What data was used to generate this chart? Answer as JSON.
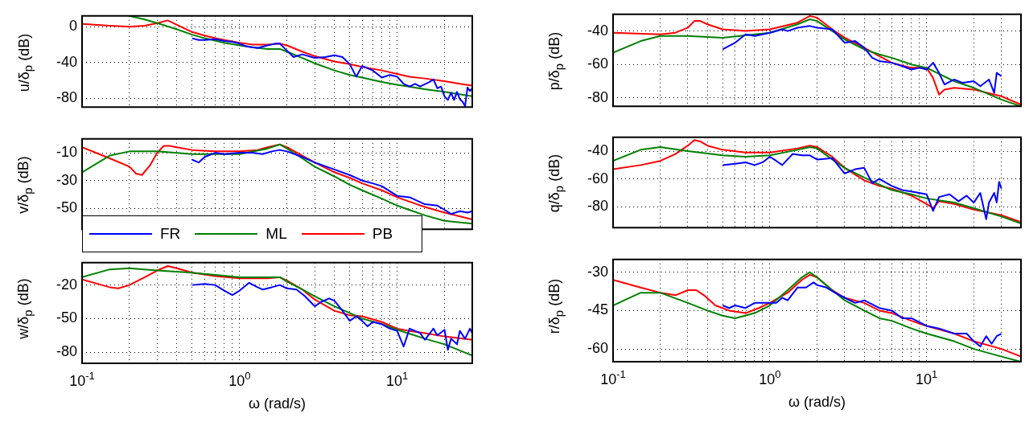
{
  "chart_data": [
    {
      "type": "line",
      "ylabel": "u/δ$_{p}$ (dB)",
      "xlim": [
        0.1,
        30
      ],
      "ylim": [
        -90,
        12
      ],
      "log": "x",
      "grid": true,
      "tick_labels": "y",
      "xticks": [
        {
          "value": 0.1,
          "label": null
        },
        {
          "value": 0.2,
          "label": null
        },
        {
          "value": 0.3,
          "label": null
        },
        {
          "value": 0.4,
          "label": null
        },
        {
          "value": 0.5,
          "label": null
        },
        {
          "value": 0.6,
          "label": null
        },
        {
          "value": 0.7,
          "label": null
        },
        {
          "value": 0.8,
          "label": null
        },
        {
          "value": 0.9,
          "label": null
        },
        {
          "value": 1,
          "label": null
        },
        {
          "value": 2,
          "label": null
        },
        {
          "value": 3,
          "label": null
        },
        {
          "value": 4,
          "label": null
        },
        {
          "value": 5,
          "label": null
        },
        {
          "value": 6,
          "label": null
        },
        {
          "value": 7,
          "label": null
        },
        {
          "value": 8,
          "label": null
        },
        {
          "value": 9,
          "label": null
        },
        {
          "value": 10,
          "label": null
        },
        {
          "value": 20,
          "label": null
        }
      ],
      "yticks": [
        -80,
        -40,
        0
      ],
      "series": [
        {
          "color": "#0000ff",
          "x": [
            0.5,
            0.55,
            0.6,
            0.7,
            0.8,
            0.9,
            1,
            1.1,
            1.2,
            1.3,
            1.5,
            1.7,
            1.8,
            2,
            2.2,
            2.5,
            3,
            3.5,
            4,
            4.5,
            5,
            5.5,
            6,
            7,
            8,
            9,
            10,
            11,
            12,
            13,
            14,
            16,
            17,
            18,
            19,
            20,
            21,
            22,
            23,
            24,
            25,
            26,
            27,
            28,
            29,
            30
          ],
          "values": [
            -13,
            -15,
            -15,
            -14,
            -16,
            -17,
            -19,
            -22,
            -23,
            -24,
            -21,
            -19,
            -19,
            -27,
            -34,
            -31,
            -35,
            -34,
            -32,
            -34,
            -42,
            -56,
            -44,
            -49,
            -57,
            -54,
            -56,
            -64,
            -67,
            -64,
            -67,
            -62,
            -59,
            -69,
            -67,
            -78,
            -82,
            -74,
            -82,
            -73,
            -81,
            -84,
            -89,
            -68,
            -72,
            -69
          ]
        },
        {
          "color": "#008000",
          "x": [
            0.2,
            0.25,
            0.3,
            0.4,
            0.5,
            0.6,
            0.8,
            1,
            1.2,
            1.5,
            1.8,
            2,
            2.5,
            3,
            4,
            5,
            6,
            8,
            10,
            15,
            20,
            30
          ],
          "values": [
            12,
            8,
            4,
            -3,
            -9,
            -13,
            -18,
            -21,
            -23,
            -25,
            -25,
            -28,
            -35,
            -41,
            -49,
            -54,
            -57,
            -62,
            -65,
            -70,
            -73,
            -78
          ]
        },
        {
          "color": "#ff0000",
          "x": [
            0.1,
            0.15,
            0.2,
            0.25,
            0.3,
            0.35,
            0.4,
            0.5,
            0.6,
            0.7,
            0.8,
            1,
            1.2,
            1.5,
            1.8,
            2,
            2.5,
            3,
            4,
            5,
            6,
            8,
            10,
            12,
            15,
            20,
            25,
            30
          ],
          "values": [
            3,
            1,
            0,
            1,
            4,
            7,
            2,
            -6,
            -10,
            -13,
            -15,
            -18,
            -20,
            -20,
            -19,
            -21,
            -28,
            -33,
            -39,
            -42,
            -45,
            -49,
            -53,
            -56,
            -58,
            -61,
            -64,
            -66
          ]
        }
      ]
    },
    {
      "type": "line",
      "ylabel": "p/δ$_{p}$ (dB)",
      "xlim": [
        0.1,
        40
      ],
      "ylim": [
        -85,
        -30
      ],
      "log": "x",
      "grid": true,
      "tick_labels": "y",
      "xticks": [
        {
          "value": 0.1,
          "label": null
        },
        {
          "value": 0.2,
          "label": null
        },
        {
          "value": 0.3,
          "label": null
        },
        {
          "value": 0.4,
          "label": null
        },
        {
          "value": 0.5,
          "label": null
        },
        {
          "value": 0.6,
          "label": null
        },
        {
          "value": 0.7,
          "label": null
        },
        {
          "value": 0.8,
          "label": null
        },
        {
          "value": 0.9,
          "label": null
        },
        {
          "value": 1,
          "label": null
        },
        {
          "value": 2,
          "label": null
        },
        {
          "value": 3,
          "label": null
        },
        {
          "value": 4,
          "label": null
        },
        {
          "value": 5,
          "label": null
        },
        {
          "value": 6,
          "label": null
        },
        {
          "value": 7,
          "label": null
        },
        {
          "value": 8,
          "label": null
        },
        {
          "value": 9,
          "label": null
        },
        {
          "value": 10,
          "label": null
        },
        {
          "value": 20,
          "label": null
        },
        {
          "value": 30,
          "label": null
        }
      ],
      "yticks": [
        -80,
        -60,
        -40
      ],
      "series": [
        {
          "color": "#0000ff",
          "x": [
            0.5,
            0.6,
            0.7,
            0.8,
            0.9,
            1,
            1.2,
            1.3,
            1.5,
            1.8,
            2,
            2.5,
            3,
            3.5,
            4,
            4.5,
            5,
            6,
            7,
            8,
            9,
            10,
            11,
            12,
            13,
            15,
            17,
            20,
            22,
            25,
            27,
            28,
            30
          ],
          "values": [
            -51,
            -47,
            -42,
            -43,
            -42,
            -41,
            -39,
            -40,
            -38,
            -37,
            -38,
            -39,
            -47,
            -46,
            -50,
            -56,
            -58,
            -59,
            -61,
            -63,
            -62,
            -63,
            -59,
            -65,
            -72,
            -69,
            -71,
            -70,
            -73,
            -69,
            -77,
            -65,
            -67
          ]
        },
        {
          "color": "#008000",
          "x": [
            0.1,
            0.15,
            0.2,
            0.3,
            0.5,
            0.8,
            1,
            1.5,
            1.8,
            2,
            2.5,
            3,
            4,
            5,
            6,
            8,
            10,
            15,
            20,
            30,
            40
          ],
          "values": [
            -53,
            -46,
            -43,
            -43,
            -44,
            -42,
            -41,
            -36,
            -33,
            -34,
            -40,
            -45,
            -51,
            -54,
            -56,
            -60,
            -62,
            -70,
            -74,
            -81,
            -85
          ]
        },
        {
          "color": "#ff0000",
          "x": [
            0.1,
            0.2,
            0.25,
            0.3,
            0.33,
            0.36,
            0.4,
            0.5,
            0.7,
            1,
            1.5,
            1.8,
            2,
            2.5,
            3,
            4,
            5,
            6,
            8,
            10,
            11,
            12,
            13,
            15,
            20,
            30,
            40
          ],
          "values": [
            -41,
            -42,
            -41,
            -38,
            -34,
            -34,
            -36,
            -39,
            -40,
            -39,
            -35,
            -31,
            -32,
            -39,
            -44,
            -50,
            -55,
            -59,
            -62,
            -62,
            -68,
            -78,
            -75,
            -74,
            -75,
            -79,
            -84
          ]
        }
      ]
    },
    {
      "type": "line",
      "ylabel": "v/δ$_{p}$ (dB)",
      "xlim": [
        0.1,
        30
      ],
      "ylim": [
        -65,
        0
      ],
      "log": "x",
      "grid": true,
      "tick_labels": "y",
      "legend": "bottom left",
      "xticks": [
        {
          "value": 0.1,
          "label": null
        },
        {
          "value": 0.2,
          "label": null
        },
        {
          "value": 0.3,
          "label": null
        },
        {
          "value": 0.4,
          "label": null
        },
        {
          "value": 0.5,
          "label": null
        },
        {
          "value": 0.6,
          "label": null
        },
        {
          "value": 0.7,
          "label": null
        },
        {
          "value": 0.8,
          "label": null
        },
        {
          "value": 0.9,
          "label": null
        },
        {
          "value": 1,
          "label": null
        },
        {
          "value": 2,
          "label": null
        },
        {
          "value": 3,
          "label": null
        },
        {
          "value": 4,
          "label": null
        },
        {
          "value": 5,
          "label": null
        },
        {
          "value": 6,
          "label": null
        },
        {
          "value": 7,
          "label": null
        },
        {
          "value": 8,
          "label": null
        },
        {
          "value": 9,
          "label": null
        },
        {
          "value": 10,
          "label": null
        },
        {
          "value": 20,
          "label": null
        }
      ],
      "yticks": [
        -50,
        -30,
        -10
      ],
      "series": [
        {
          "name": "FR",
          "color": "#0000ff",
          "x": [
            0.5,
            0.55,
            0.6,
            0.7,
            0.8,
            1,
            1.2,
            1.4,
            1.6,
            1.8,
            2,
            2.5,
            3,
            4,
            5,
            6,
            7,
            8,
            10,
            12,
            15,
            18,
            20,
            22,
            25,
            28,
            30
          ],
          "values": [
            -15,
            -17,
            -13,
            -10,
            -11,
            -10,
            -10,
            -11,
            -9,
            -8,
            -9,
            -13,
            -17,
            -22,
            -26,
            -30,
            -32,
            -34,
            -41,
            -42,
            -47,
            -48,
            -51,
            -54,
            -52,
            -53,
            -52
          ]
        },
        {
          "name": "ML",
          "color": "#008000",
          "x": [
            0.1,
            0.15,
            0.2,
            0.3,
            0.5,
            0.7,
            1,
            1.5,
            1.8,
            2,
            2.5,
            3,
            4,
            5,
            6,
            8,
            10,
            15,
            20,
            30
          ],
          "values": [
            -24,
            -12,
            -9,
            -9,
            -11,
            -11,
            -11,
            -7,
            -4,
            -7,
            -14,
            -20,
            -27,
            -33,
            -37,
            -43,
            -48,
            -55,
            -59,
            -61
          ]
        },
        {
          "name": "PB",
          "color": "#ff0000",
          "x": [
            0.1,
            0.15,
            0.2,
            0.22,
            0.24,
            0.27,
            0.3,
            0.33,
            0.36,
            0.4,
            0.5,
            0.7,
            1,
            1.3,
            1.5,
            1.8,
            2,
            2.5,
            3,
            4,
            5,
            6,
            8,
            10,
            15,
            20,
            30
          ],
          "values": [
            -6,
            -14,
            -20,
            -25,
            -26,
            -19,
            -10,
            -5,
            -5,
            -6,
            -8,
            -9,
            -9,
            -8,
            -6,
            -4,
            -6,
            -12,
            -17,
            -24,
            -28,
            -32,
            -37,
            -42,
            -49,
            -53,
            -58
          ]
        }
      ]
    },
    {
      "type": "line",
      "ylabel": "q/δ$_{p}$ (dB)",
      "xlim": [
        0.1,
        40
      ],
      "ylim": [
        -95,
        -30
      ],
      "log": "x",
      "grid": true,
      "tick_labels": "y",
      "xticks": [
        {
          "value": 0.1,
          "label": null
        },
        {
          "value": 0.2,
          "label": null
        },
        {
          "value": 0.3,
          "label": null
        },
        {
          "value": 0.4,
          "label": null
        },
        {
          "value": 0.5,
          "label": null
        },
        {
          "value": 0.6,
          "label": null
        },
        {
          "value": 0.7,
          "label": null
        },
        {
          "value": 0.8,
          "label": null
        },
        {
          "value": 0.9,
          "label": null
        },
        {
          "value": 1,
          "label": null
        },
        {
          "value": 2,
          "label": null
        },
        {
          "value": 3,
          "label": null
        },
        {
          "value": 4,
          "label": null
        },
        {
          "value": 5,
          "label": null
        },
        {
          "value": 6,
          "label": null
        },
        {
          "value": 7,
          "label": null
        },
        {
          "value": 8,
          "label": null
        },
        {
          "value": 9,
          "label": null
        },
        {
          "value": 10,
          "label": null
        },
        {
          "value": 20,
          "label": null
        },
        {
          "value": 30,
          "label": null
        }
      ],
      "yticks": [
        -80,
        -60,
        -40
      ],
      "series": [
        {
          "color": "#0000ff",
          "x": [
            0.5,
            0.6,
            0.7,
            0.8,
            0.9,
            1,
            1.1,
            1.2,
            1.4,
            1.6,
            1.8,
            2,
            2.5,
            3,
            3.5,
            4,
            4.5,
            5,
            6,
            7,
            8,
            10,
            11,
            12,
            14,
            16,
            18,
            20,
            22,
            24,
            25,
            27,
            28,
            29,
            30
          ],
          "values": [
            -50,
            -49,
            -48,
            -50,
            -48,
            -44,
            -47,
            -50,
            -42,
            -43,
            -43,
            -46,
            -45,
            -56,
            -53,
            -52,
            -63,
            -60,
            -65,
            -68,
            -69,
            -71,
            -83,
            -73,
            -71,
            -76,
            -72,
            -77,
            -70,
            -89,
            -77,
            -70,
            -77,
            -62,
            -67
          ]
        },
        {
          "color": "#008000",
          "x": [
            0.1,
            0.15,
            0.2,
            0.3,
            0.5,
            0.7,
            1,
            1.5,
            1.8,
            2,
            2.5,
            3,
            4,
            5,
            6,
            8,
            10,
            15,
            20,
            30,
            40
          ],
          "values": [
            -47,
            -39,
            -37,
            -40,
            -43,
            -44,
            -43,
            -39,
            -37,
            -38,
            -46,
            -52,
            -59,
            -64,
            -68,
            -71,
            -74,
            -77,
            -81,
            -87,
            -92
          ]
        },
        {
          "color": "#ff0000",
          "x": [
            0.1,
            0.15,
            0.2,
            0.25,
            0.3,
            0.33,
            0.36,
            0.4,
            0.5,
            0.7,
            1,
            1.5,
            1.8,
            2,
            2.5,
            3,
            4,
            5,
            6,
            8,
            10,
            11,
            12,
            15,
            20,
            30,
            40
          ],
          "values": [
            -53,
            -50,
            -47,
            -42,
            -36,
            -32,
            -33,
            -36,
            -39,
            -41,
            -41,
            -38,
            -36,
            -37,
            -44,
            -52,
            -61,
            -65,
            -67,
            -72,
            -78,
            -81,
            -76,
            -78,
            -82,
            -86,
            -91
          ]
        }
      ]
    },
    {
      "type": "line",
      "ylabel": "w/δ$_{p}$ (dB)",
      "xlabel": "ω (rad/s)",
      "xlim": [
        0.1,
        30
      ],
      "ylim": [
        -90,
        0
      ],
      "log": "x",
      "grid": true,
      "xticks": [
        {
          "value": 0.1,
          "label": "10$^{-1}$"
        },
        {
          "value": 0.2,
          "label": null
        },
        {
          "value": 0.3,
          "label": null
        },
        {
          "value": 0.4,
          "label": null
        },
        {
          "value": 0.5,
          "label": null
        },
        {
          "value": 0.6,
          "label": null
        },
        {
          "value": 0.7,
          "label": null
        },
        {
          "value": 0.8,
          "label": null
        },
        {
          "value": 0.9,
          "label": null
        },
        {
          "value": 1,
          "label": "10$^{0}$"
        },
        {
          "value": 2,
          "label": null
        },
        {
          "value": 3,
          "label": null
        },
        {
          "value": 4,
          "label": null
        },
        {
          "value": 5,
          "label": null
        },
        {
          "value": 6,
          "label": null
        },
        {
          "value": 7,
          "label": null
        },
        {
          "value": 8,
          "label": null
        },
        {
          "value": 9,
          "label": null
        },
        {
          "value": 10,
          "label": "10$^{1}$"
        },
        {
          "value": 20,
          "label": null
        }
      ],
      "yticks": [
        -80,
        -50,
        -20
      ],
      "series": [
        {
          "color": "#0000ff",
          "x": [
            0.5,
            0.6,
            0.7,
            0.8,
            0.9,
            1,
            1.15,
            1.3,
            1.4,
            1.6,
            1.8,
            2,
            2.3,
            2.6,
            3,
            3.3,
            3.7,
            4,
            4.5,
            5,
            5.5,
            6,
            6.5,
            7,
            8,
            9,
            10,
            11,
            12,
            14,
            15,
            17,
            18,
            20,
            21,
            22,
            24,
            25,
            27,
            29,
            30
          ],
          "values": [
            -20,
            -19,
            -20,
            -25,
            -29,
            -25,
            -18,
            -22,
            -24,
            -22,
            -20,
            -23,
            -24,
            -30,
            -39,
            -35,
            -32,
            -34,
            -43,
            -52,
            -48,
            -52,
            -57,
            -53,
            -55,
            -59,
            -61,
            -75,
            -59,
            -63,
            -69,
            -59,
            -65,
            -60,
            -78,
            -68,
            -73,
            -61,
            -68,
            -59,
            -63
          ]
        },
        {
          "color": "#008000",
          "x": [
            0.1,
            0.15,
            0.2,
            0.3,
            0.5,
            0.7,
            1,
            1.5,
            1.8,
            2,
            2.5,
            3,
            4,
            5,
            6,
            8,
            10,
            15,
            20,
            30
          ],
          "values": [
            -13,
            -6,
            -5,
            -7,
            -9,
            -11,
            -13,
            -13,
            -13,
            -17,
            -24,
            -30,
            -39,
            -45,
            -50,
            -55,
            -60,
            -68,
            -73,
            -83
          ]
        },
        {
          "color": "#ff0000",
          "x": [
            0.1,
            0.15,
            0.17,
            0.2,
            0.25,
            0.3,
            0.35,
            0.4,
            0.5,
            0.7,
            1,
            1.5,
            1.8,
            2,
            2.5,
            3,
            4,
            5,
            6,
            8,
            10,
            12,
            15,
            20,
            30
          ],
          "values": [
            -15,
            -22,
            -23,
            -20,
            -13,
            -7,
            -3,
            -5,
            -9,
            -12,
            -14,
            -14,
            -13,
            -16,
            -24,
            -33,
            -43,
            -47,
            -48,
            -53,
            -59,
            -61,
            -63,
            -66,
            -69
          ]
        }
      ]
    },
    {
      "type": "line",
      "ylabel": "r/δ$_{p}$ (dB)",
      "xlabel": "ω (rad/s)",
      "xlim": [
        0.1,
        40
      ],
      "ylim": [
        -65,
        -25
      ],
      "log": "x",
      "grid": true,
      "xticks": [
        {
          "value": 0.1,
          "label": "10$^{-1}$"
        },
        {
          "value": 0.2,
          "label": null
        },
        {
          "value": 0.3,
          "label": null
        },
        {
          "value": 0.4,
          "label": null
        },
        {
          "value": 0.5,
          "label": null
        },
        {
          "value": 0.6,
          "label": null
        },
        {
          "value": 0.7,
          "label": null
        },
        {
          "value": 0.8,
          "label": null
        },
        {
          "value": 0.9,
          "label": null
        },
        {
          "value": 1,
          "label": "10$^{0}$"
        },
        {
          "value": 2,
          "label": null
        },
        {
          "value": 3,
          "label": null
        },
        {
          "value": 4,
          "label": null
        },
        {
          "value": 5,
          "label": null
        },
        {
          "value": 6,
          "label": null
        },
        {
          "value": 7,
          "label": null
        },
        {
          "value": 8,
          "label": null
        },
        {
          "value": 9,
          "label": null
        },
        {
          "value": 10,
          "label": "10$^{1}$"
        },
        {
          "value": 20,
          "label": null
        },
        {
          "value": 30,
          "label": null
        }
      ],
      "yticks": [
        -60,
        -45,
        -30
      ],
      "series": [
        {
          "color": "#0000ff",
          "x": [
            0.5,
            0.55,
            0.6,
            0.7,
            0.8,
            0.9,
            1,
            1.1,
            1.2,
            1.3,
            1.5,
            1.7,
            1.9,
            2,
            2.3,
            2.6,
            3,
            3.5,
            4,
            5,
            6,
            7,
            8,
            10,
            12,
            15,
            18,
            20,
            22,
            24,
            26,
            28,
            30
          ],
          "values": [
            -43,
            -44,
            -43,
            -44,
            -42,
            -42,
            -42,
            -42,
            -40,
            -41,
            -36,
            -36,
            -34,
            -35,
            -36,
            -38,
            -40,
            -42,
            -41,
            -44,
            -45,
            -48,
            -48,
            -51,
            -52,
            -54,
            -54,
            -57,
            -59,
            -55,
            -58,
            -55,
            -54
          ]
        },
        {
          "color": "#008000",
          "x": [
            0.1,
            0.15,
            0.2,
            0.3,
            0.4,
            0.5,
            0.6,
            0.8,
            1,
            1.3,
            1.6,
            1.8,
            2,
            2.5,
            3,
            4,
            5,
            6,
            8,
            10,
            15,
            20,
            30,
            40
          ],
          "values": [
            -43,
            -38,
            -38,
            -42,
            -45,
            -47,
            -48,
            -46,
            -43,
            -37,
            -32,
            -30,
            -32,
            -37,
            -41,
            -45,
            -48,
            -49,
            -52,
            -54,
            -57,
            -60,
            -63,
            -65
          ]
        },
        {
          "color": "#ff0000",
          "x": [
            0.1,
            0.15,
            0.2,
            0.25,
            0.3,
            0.34,
            0.38,
            0.45,
            0.55,
            0.7,
            0.85,
            1,
            1.3,
            1.6,
            1.8,
            2,
            2.5,
            3,
            4,
            5,
            6,
            8,
            10,
            15,
            20,
            30,
            40
          ],
          "values": [
            -33,
            -36,
            -38,
            -39,
            -37,
            -37,
            -39,
            -43,
            -45,
            -46,
            -44,
            -42,
            -38,
            -33,
            -31,
            -32,
            -37,
            -40,
            -42,
            -45,
            -46,
            -49,
            -51,
            -54,
            -57,
            -60,
            -63
          ]
        }
      ]
    }
  ]
}
